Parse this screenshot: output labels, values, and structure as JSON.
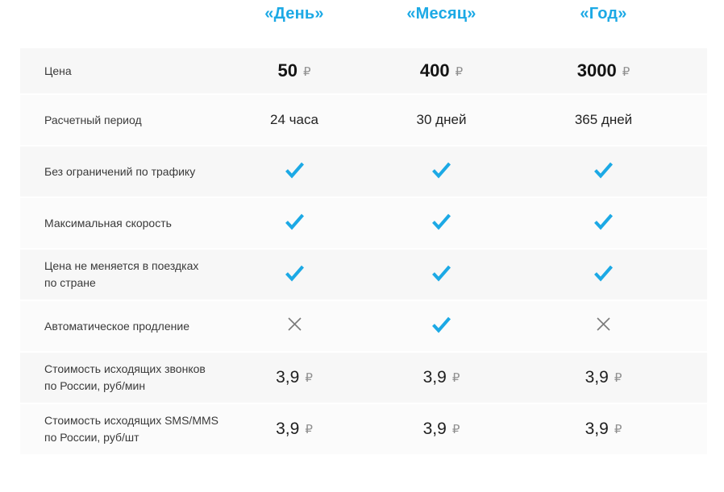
{
  "colors": {
    "accent": "#1ca9e5",
    "check": "#1ca9e5",
    "cross": "#7a7a7a",
    "row_odd_bg": "#f7f7f7",
    "row_even_bg": "#fbfbfb",
    "label_text": "#3a3a3a",
    "value_text": "#232323",
    "ruble_sign": "#8f8f8f"
  },
  "header": {
    "columns": [
      "«День»",
      "«Месяц»",
      "«Год»"
    ]
  },
  "rows": [
    {
      "label": "Цена",
      "emphasis": true,
      "cells": [
        {
          "type": "price",
          "value": "50",
          "currency": "₽"
        },
        {
          "type": "price",
          "value": "400",
          "currency": "₽"
        },
        {
          "type": "price",
          "value": "3000",
          "currency": "₽"
        }
      ]
    },
    {
      "label": "Расчетный период",
      "cells": [
        {
          "type": "text",
          "value": "24 часа"
        },
        {
          "type": "text",
          "value": "30 дней"
        },
        {
          "type": "text",
          "value": "365 дней"
        }
      ]
    },
    {
      "label": "Без ограничений по трафику",
      "cells": [
        {
          "type": "check"
        },
        {
          "type": "check"
        },
        {
          "type": "check"
        }
      ]
    },
    {
      "label": "Максимальная скорость",
      "cells": [
        {
          "type": "check"
        },
        {
          "type": "check"
        },
        {
          "type": "check"
        }
      ]
    },
    {
      "label": "Цена не меняется в поездках\nпо стране",
      "cells": [
        {
          "type": "check"
        },
        {
          "type": "check"
        },
        {
          "type": "check"
        }
      ]
    },
    {
      "label": "Автоматическое продление",
      "cells": [
        {
          "type": "cross"
        },
        {
          "type": "check"
        },
        {
          "type": "cross"
        }
      ]
    },
    {
      "label": "Стоимость исходящих звонков\nпо России, руб/мин",
      "cells": [
        {
          "type": "price",
          "value": "3,9",
          "currency": "₽"
        },
        {
          "type": "price",
          "value": "3,9",
          "currency": "₽"
        },
        {
          "type": "price",
          "value": "3,9",
          "currency": "₽"
        }
      ]
    },
    {
      "label": "Стоимость исходящих SMS/MMS\nпо России, руб/шт",
      "cells": [
        {
          "type": "price",
          "value": "3,9",
          "currency": "₽"
        },
        {
          "type": "price",
          "value": "3,9",
          "currency": "₽"
        },
        {
          "type": "price",
          "value": "3,9",
          "currency": "₽"
        }
      ]
    }
  ]
}
